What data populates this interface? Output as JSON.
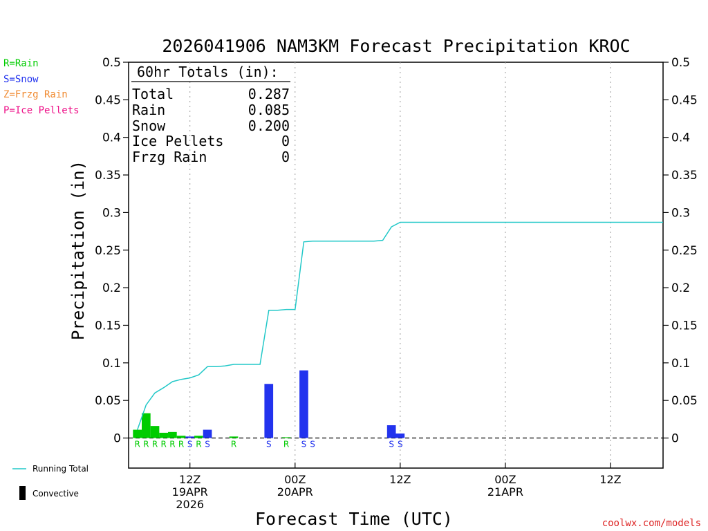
{
  "chart_data": {
    "type": "bar",
    "title": "2026041906 NAM3KM Forecast Precipitation KROC",
    "xlabel": "Forecast Time (UTC)",
    "ylabel": "Precipitation (in)",
    "ylim": [
      -0.04,
      0.5
    ],
    "y_ticks": [
      "0.5",
      "0.45",
      "0.4",
      "0.35",
      "0.3",
      "0.25",
      "0.2",
      "0.15",
      "0.1",
      "0.05",
      "0"
    ],
    "x_range_hours": [
      -1,
      60
    ],
    "x_ticks": [
      {
        "hour": 6,
        "lines": [
          "12Z",
          "19APR",
          "2026"
        ]
      },
      {
        "hour": 18,
        "lines": [
          "00Z",
          "20APR"
        ]
      },
      {
        "hour": 30,
        "lines": [
          "12Z"
        ]
      },
      {
        "hour": 42,
        "lines": [
          "00Z",
          "21APR"
        ]
      },
      {
        "hour": 54,
        "lines": [
          "12Z"
        ]
      }
    ],
    "x_gridlines_hours": [
      6,
      18,
      30,
      42,
      54
    ],
    "y_zero_line": "dashed",
    "legend": {
      "placement": "top-left",
      "entries": [
        {
          "label": "R=Rain",
          "color": "#00cc00"
        },
        {
          "label": "S=Snow",
          "color": "#2233ee"
        },
        {
          "label": "Z=Frzg Rain",
          "color": "#f08a30"
        },
        {
          "label": "P=Ice Pellets",
          "color": "#ee1188"
        }
      ]
    },
    "bottom_legend": {
      "running_total": "Running Total",
      "convective": "Convective"
    },
    "totals_box": {
      "header": "60hr Totals (in):",
      "rows": [
        {
          "label": "Total",
          "value": "0.287"
        },
        {
          "label": "Rain",
          "value": "0.085"
        },
        {
          "label": "Snow",
          "value": "0.200"
        },
        {
          "label": "Ice Pellets",
          "value": "0"
        },
        {
          "label": "Frzg Rain",
          "value": "0"
        }
      ]
    },
    "bars": [
      {
        "hour": 0,
        "value": 0.011,
        "type": "R"
      },
      {
        "hour": 1,
        "value": 0.033,
        "type": "R"
      },
      {
        "hour": 2,
        "value": 0.016,
        "type": "R"
      },
      {
        "hour": 3,
        "value": 0.007,
        "type": "R"
      },
      {
        "hour": 4,
        "value": 0.008,
        "type": "R"
      },
      {
        "hour": 5,
        "value": 0.003,
        "type": "R"
      },
      {
        "hour": 6,
        "value": 0.002,
        "type": "S"
      },
      {
        "hour": 7,
        "value": 0.003,
        "type": "R"
      },
      {
        "hour": 8,
        "value": 0.011,
        "type": "S"
      },
      {
        "hour": 11,
        "value": 0.002,
        "type": "R"
      },
      {
        "hour": 15,
        "value": 0.072,
        "type": "S"
      },
      {
        "hour": 17,
        "value": 0.001,
        "type": "R"
      },
      {
        "hour": 19,
        "value": 0.09,
        "type": "S"
      },
      {
        "hour": 20,
        "value": 0.0,
        "type": "S"
      },
      {
        "hour": 29,
        "value": 0.017,
        "type": "S"
      },
      {
        "hour": 30,
        "value": 0.006,
        "type": "S"
      }
    ],
    "series": [
      {
        "name": "Running Total",
        "color": "#22c8c8",
        "x": [
          0,
          1,
          2,
          3,
          4,
          5,
          6,
          7,
          8,
          9,
          10,
          11,
          12,
          13,
          14,
          15,
          16,
          17,
          18,
          19,
          20,
          21,
          22,
          23,
          24,
          25,
          26,
          27,
          28,
          29,
          30,
          31,
          60
        ],
        "y": [
          0.011,
          0.044,
          0.06,
          0.067,
          0.075,
          0.078,
          0.08,
          0.084,
          0.095,
          0.095,
          0.096,
          0.098,
          0.098,
          0.098,
          0.098,
          0.17,
          0.17,
          0.171,
          0.171,
          0.261,
          0.262,
          0.262,
          0.262,
          0.262,
          0.262,
          0.262,
          0.262,
          0.262,
          0.263,
          0.281,
          0.287,
          0.287,
          0.287
        ]
      }
    ],
    "colors": {
      "rain": "#00cc00",
      "snow": "#2233ee",
      "frzg_rain": "#f08a30",
      "ice_pellets": "#ee1188",
      "running_total": "#22c8c8",
      "credit": "#dd2222"
    }
  },
  "credit": "coolwx.com/models"
}
